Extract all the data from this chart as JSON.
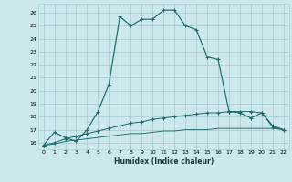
{
  "xlabel": "Humidex (Indice chaleur)",
  "xlim": [
    -0.5,
    22.5
  ],
  "ylim": [
    15.5,
    26.7
  ],
  "yticks": [
    16,
    17,
    18,
    19,
    20,
    21,
    22,
    23,
    24,
    25,
    26
  ],
  "xticks": [
    0,
    1,
    2,
    3,
    4,
    5,
    6,
    7,
    8,
    9,
    10,
    11,
    12,
    13,
    14,
    15,
    16,
    17,
    18,
    19,
    20,
    21,
    22
  ],
  "bg_color": "#cce8ed",
  "grid_color": "#aacfd6",
  "line_color": "#1a6b6b",
  "series1_x": [
    0,
    1,
    2,
    3,
    4,
    5,
    6,
    7,
    8,
    9,
    10,
    11,
    12,
    13,
    14,
    15,
    16,
    17,
    18,
    19,
    20,
    21,
    22
  ],
  "series1_y": [
    15.8,
    16.8,
    16.4,
    16.1,
    17.0,
    18.4,
    20.5,
    25.7,
    25.0,
    25.5,
    25.5,
    26.2,
    26.2,
    25.0,
    24.7,
    22.6,
    22.4,
    18.4,
    18.3,
    17.9,
    18.3,
    17.3,
    17.0
  ],
  "series2_x": [
    0,
    1,
    2,
    3,
    4,
    5,
    6,
    7,
    8,
    9,
    10,
    11,
    12,
    13,
    14,
    15,
    16,
    17,
    18,
    19,
    20,
    21,
    22
  ],
  "series2_y": [
    15.8,
    16.0,
    16.3,
    16.5,
    16.7,
    16.9,
    17.1,
    17.3,
    17.5,
    17.6,
    17.8,
    17.9,
    18.0,
    18.1,
    18.2,
    18.3,
    18.3,
    18.4,
    18.4,
    18.4,
    18.3,
    17.2,
    17.0
  ],
  "series3_x": [
    0,
    1,
    2,
    3,
    4,
    5,
    6,
    7,
    8,
    9,
    10,
    11,
    12,
    13,
    14,
    15,
    16,
    17,
    18,
    19,
    20,
    21,
    22
  ],
  "series3_y": [
    15.8,
    15.9,
    16.1,
    16.2,
    16.3,
    16.4,
    16.5,
    16.6,
    16.7,
    16.7,
    16.8,
    16.9,
    16.9,
    17.0,
    17.0,
    17.0,
    17.1,
    17.1,
    17.1,
    17.1,
    17.1,
    17.1,
    17.0
  ]
}
